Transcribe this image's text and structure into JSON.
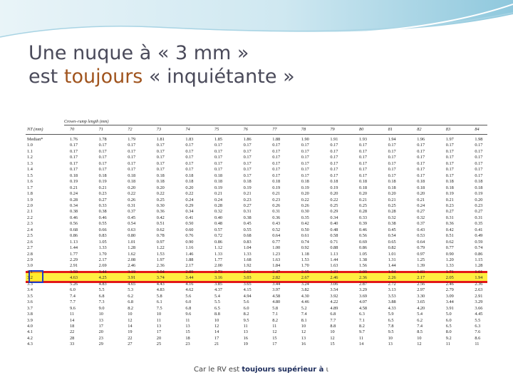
{
  "slide": {
    "title_line1": "Une nuque à « 3 mm »",
    "title_line2_pre": "est ",
    "title_line2_em": "toujours",
    "title_line2_post": " « inquiétante »",
    "footer_pre": "Car le RV est ",
    "footer_bold": "toujours supérieur à",
    "footer_post": " ι"
  },
  "table": {
    "group_header": "Crown–rump length (mm)",
    "row_header": "NT (mm)",
    "columns": [
      "70",
      "71",
      "72",
      "73",
      "74",
      "75",
      "76",
      "77",
      "78",
      "79",
      "80",
      "81",
      "82",
      "83",
      "84"
    ],
    "rows": [
      {
        "nt": "Median*",
        "v": [
          "1.76",
          "1.78",
          "1.79",
          "1.81",
          "1.83",
          "1.85",
          "1.86",
          "1.88",
          "1.90",
          "1.91",
          "1.93",
          "1.94",
          "1.96",
          "1.97",
          "1.98"
        ]
      },
      {
        "nt": "1.0",
        "v": [
          "0.17",
          "0.17",
          "0.17",
          "0.17",
          "0.17",
          "0.17",
          "0.17",
          "0.17",
          "0.17",
          "0.17",
          "0.17",
          "0.17",
          "0.17",
          "0.17",
          "0.17"
        ]
      },
      {
        "nt": "1.1",
        "v": [
          "0.17",
          "0.17",
          "0.17",
          "0.17",
          "0.17",
          "0.17",
          "0.17",
          "0.17",
          "0.17",
          "0.17",
          "0.17",
          "0.17",
          "0.17",
          "0.17",
          "0.17"
        ]
      },
      {
        "nt": "1.2",
        "v": [
          "0.17",
          "0.17",
          "0.17",
          "0.17",
          "0.17",
          "0.17",
          "0.17",
          "0.17",
          "0.17",
          "0.17",
          "0.17",
          "0.17",
          "0.17",
          "0.17",
          "0.17"
        ]
      },
      {
        "nt": "1.3",
        "v": [
          "0.17",
          "0.17",
          "0.17",
          "0.17",
          "0.17",
          "0.17",
          "0.17",
          "0.17",
          "0.17",
          "0.17",
          "0.17",
          "0.17",
          "0.17",
          "0.17",
          "0.17"
        ]
      },
      {
        "nt": "1.4",
        "v": [
          "0.17",
          "0.17",
          "0.17",
          "0.17",
          "0.17",
          "0.17",
          "0.17",
          "0.17",
          "0.17",
          "0.17",
          "0.17",
          "0.17",
          "0.17",
          "0.17",
          "0.17"
        ]
      },
      {
        "nt": "1.5",
        "v": [
          "0.18",
          "0.18",
          "0.18",
          "0.18",
          "0.18",
          "0.18",
          "0.17",
          "0.17",
          "0.17",
          "0.17",
          "0.17",
          "0.17",
          "0.17",
          "0.17",
          "0.17"
        ]
      },
      {
        "nt": "1.6",
        "v": [
          "0.19",
          "0.19",
          "0.18",
          "0.18",
          "0.18",
          "0.18",
          "0.18",
          "0.18",
          "0.18",
          "0.18",
          "0.18",
          "0.18",
          "0.18",
          "0.18",
          "0.18"
        ]
      },
      {
        "nt": "1.7",
        "v": [
          "0.21",
          "0.21",
          "0.20",
          "0.20",
          "0.20",
          "0.19",
          "0.19",
          "0.19",
          "0.19",
          "0.19",
          "0.18",
          "0.18",
          "0.18",
          "0.18",
          "0.18"
        ]
      },
      {
        "nt": "1.8",
        "v": [
          "0.24",
          "0.23",
          "0.22",
          "0.22",
          "0.22",
          "0.21",
          "0.21",
          "0.21",
          "0.20",
          "0.20",
          "0.20",
          "0.20",
          "0.20",
          "0.19",
          "0.19"
        ]
      },
      {
        "nt": "1.9",
        "v": [
          "0.28",
          "0.27",
          "0.26",
          "0.25",
          "0.24",
          "0.24",
          "0.23",
          "0.23",
          "0.22",
          "0.22",
          "0.21",
          "0.21",
          "0.21",
          "0.21",
          "0.20"
        ]
      },
      {
        "nt": "2.0",
        "v": [
          "0.34",
          "0.33",
          "0.31",
          "0.30",
          "0.29",
          "0.28",
          "0.27",
          "0.26",
          "0.26",
          "0.25",
          "0.25",
          "0.25",
          "0.24",
          "0.23",
          "0.23"
        ]
      },
      {
        "nt": "2.1",
        "v": [
          "0.38",
          "0.38",
          "0.37",
          "0.36",
          "0.34",
          "0.32",
          "0.31",
          "0.31",
          "0.30",
          "0.29",
          "0.28",
          "0.28",
          "0.27",
          "0.27",
          "0.27"
        ]
      },
      {
        "nt": "2.2",
        "v": [
          "0.46",
          "0.46",
          "0.45",
          "0.42",
          "0.41",
          "0.40",
          "0.38",
          "0.36",
          "0.35",
          "0.34",
          "0.33",
          "0.32",
          "0.32",
          "0.31",
          "0.31"
        ]
      },
      {
        "nt": "2.3",
        "v": [
          "0.56",
          "0.55",
          "0.54",
          "0.51",
          "0.50",
          "0.48",
          "0.45",
          "0.43",
          "0.42",
          "0.40",
          "0.39",
          "0.38",
          "0.37",
          "0.36",
          "0.35"
        ]
      },
      {
        "nt": "2.4",
        "v": [
          "0.68",
          "0.66",
          "0.63",
          "0.62",
          "0.60",
          "0.57",
          "0.55",
          "0.52",
          "0.50",
          "0.48",
          "0.46",
          "0.45",
          "0.43",
          "0.42",
          "0.41"
        ]
      },
      {
        "nt": "2.5",
        "v": [
          "0.86",
          "0.83",
          "0.80",
          "0.78",
          "0.76",
          "0.72",
          "0.68",
          "0.64",
          "0.61",
          "0.58",
          "0.56",
          "0.54",
          "0.53",
          "0.51",
          "0.49"
        ]
      },
      {
        "nt": "2.6",
        "v": [
          "1.13",
          "1.05",
          "1.01",
          "0.97",
          "0.90",
          "0.86",
          "0.83",
          "0.77",
          "0.74",
          "0.71",
          "0.69",
          "0.65",
          "0.64",
          "0.62",
          "0.59"
        ]
      },
      {
        "nt": "2.7",
        "v": [
          "1.44",
          "1.33",
          "1.28",
          "1.22",
          "1.16",
          "1.12",
          "1.04",
          "1.00",
          "0.92",
          "0.88",
          "0.86",
          "0.82",
          "0.79",
          "0.77",
          "0.74"
        ]
      },
      {
        "nt": "2.8",
        "v": [
          "1.77",
          "1.70",
          "1.62",
          "1.53",
          "1.46",
          "1.33",
          "1.33",
          "1.23",
          "1.18",
          "1.13",
          "1.05",
          "1.01",
          "0.97",
          "0.90",
          "0.86"
        ]
      },
      {
        "nt": "2.9",
        "v": [
          "2.29",
          "2.17",
          "2.08",
          "1.97",
          "1.88",
          "1.77",
          "1.68",
          "1.63",
          "1.53",
          "1.44",
          "1.38",
          "1.31",
          "1.25",
          "1.20",
          "1.15"
        ]
      },
      {
        "nt": "3.0",
        "v": [
          "2.91",
          "2.69",
          "2.46",
          "2.36",
          "2.17",
          "2.00",
          "1.92",
          "1.84",
          "1.70",
          "1.63",
          "1.56",
          "1.44",
          "1.39",
          "1.33",
          "1.28"
        ]
      },
      {
        "nt": "3.1",
        "v": [
          "3.59",
          "3.44",
          "3.19",
          "3.04",
          "2.89",
          "2.73",
          "2.62",
          "2.47",
          "2.35",
          "2.23",
          "2.09",
          "1.94",
          "1.83",
          "1.71",
          "1.61"
        ]
      },
      {
        "nt": "3.2",
        "v": [
          "4.63",
          "4.25",
          "3.91",
          "3.74",
          "3.44",
          "3.16",
          "3.03",
          "2.82",
          "2.67",
          "2.46",
          "2.36",
          "2.26",
          "2.17",
          "2.05",
          "1.94"
        ]
      },
      {
        "nt": "3.3",
        "v": [
          "5.26",
          "4.83",
          "4.65",
          "4.43",
          "4.16",
          "3.85",
          "3.65",
          "3.44",
          "3.24",
          "3.06",
          "2.87",
          "2.72",
          "2.56",
          "2.46",
          "2.36"
        ]
      },
      {
        "nt": "3.4",
        "v": [
          "6.0",
          "5.5",
          "5.3",
          "4.83",
          "4.62",
          "4.37",
          "4.15",
          "3.97",
          "3.82",
          "3.54",
          "3.29",
          "3.13",
          "2.97",
          "2.79",
          "2.63"
        ]
      },
      {
        "nt": "3.5",
        "v": [
          "7.4",
          "6.8",
          "6.2",
          "5.8",
          "5.6",
          "5.4",
          "4.94",
          "4.58",
          "4.30",
          "3.92",
          "3.69",
          "3.53",
          "3.30",
          "3.09",
          "2.91"
        ]
      },
      {
        "nt": "3.6",
        "v": [
          "7.7",
          "7.3",
          "6.8",
          "6.1",
          "6.0",
          "5.5",
          "5.6",
          "4.80",
          "4.46",
          "4.22",
          "4.07",
          "3.88",
          "3.65",
          "3.44",
          "3.29"
        ]
      },
      {
        "nt": "3.7",
        "v": [
          "9.6",
          "9.0",
          "8.2",
          "7.5",
          "6.8",
          "6.5",
          "6.0",
          "5.8",
          "5.2",
          "4.89",
          "4.58",
          "4.33",
          "4.20",
          "3.91",
          "3.66"
        ]
      },
      {
        "nt": "3.8",
        "v": [
          "11",
          "10",
          "10",
          "10",
          "9.6",
          "8.8",
          "8.2",
          "7.1",
          "7.4",
          "6.8",
          "6.3",
          "5.9",
          "5.4",
          "5.0",
          "4.45"
        ]
      },
      {
        "nt": "3.9",
        "v": [
          "14",
          "13",
          "12",
          "11",
          "11",
          "10",
          "9.5",
          "8.2",
          "8.1",
          "7.7",
          "7.1",
          "6.5",
          "6.2",
          "6.0",
          "5.5"
        ]
      },
      {
        "nt": "4.0",
        "v": [
          "18",
          "17",
          "14",
          "13",
          "13",
          "12",
          "11",
          "11",
          "10",
          "8.8",
          "8.2",
          "7.8",
          "7.4",
          "6.5",
          "6.3"
        ]
      },
      {
        "nt": "4.1",
        "v": [
          "22",
          "20",
          "19",
          "17",
          "15",
          "14",
          "13",
          "12",
          "12",
          "10",
          "9.7",
          "9.5",
          "8.5",
          "8.0",
          "7.6"
        ]
      },
      {
        "nt": "4.2",
        "v": [
          "28",
          "23",
          "22",
          "20",
          "18",
          "17",
          "16",
          "15",
          "13",
          "12",
          "11",
          "10",
          "10",
          "9.2",
          "8.6"
        ]
      },
      {
        "nt": "4.3",
        "v": [
          "33",
          "29",
          "27",
          "25",
          "23",
          "21",
          "19",
          "17",
          "16",
          "15",
          "14",
          "13",
          "12",
          "11",
          "11"
        ]
      }
    ]
  }
}
